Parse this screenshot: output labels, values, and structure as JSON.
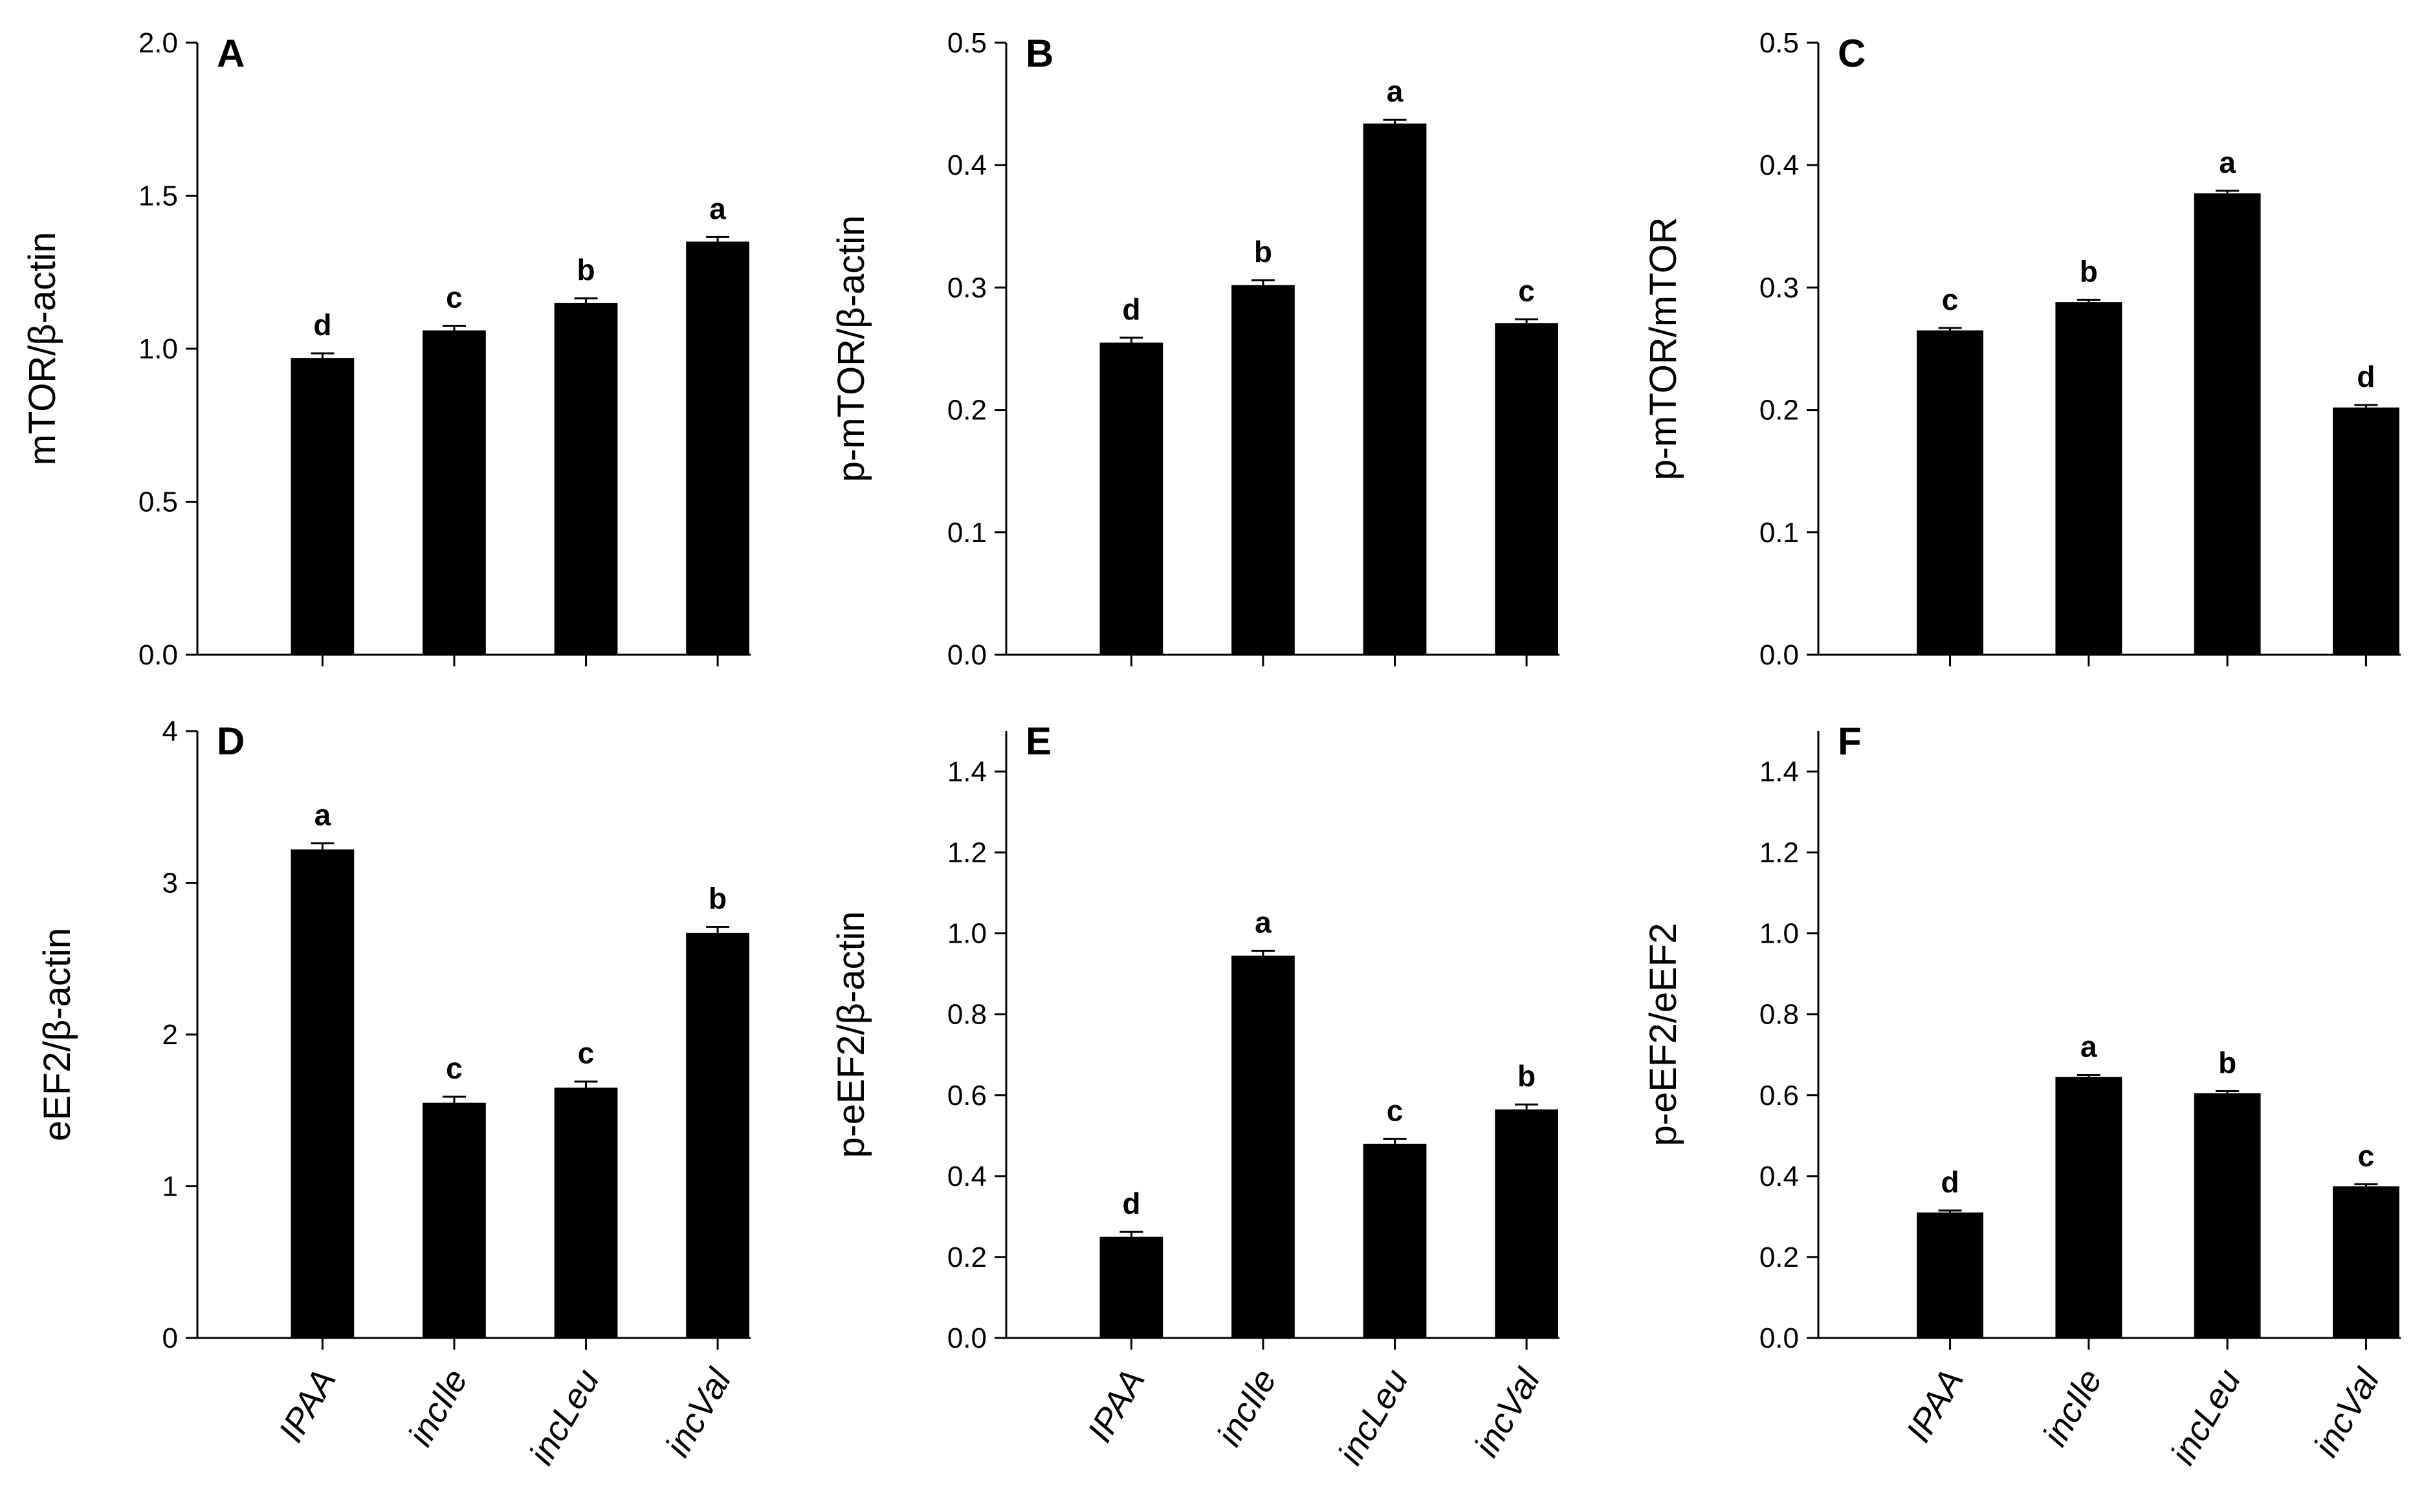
{
  "chart_data": [
    {
      "panel": "A",
      "type": "bar",
      "ylabel": "mTOR/β-actin",
      "categories": [
        "IPAA",
        "incIle",
        "incLeu",
        "incVal"
      ],
      "values": [
        0.97,
        1.06,
        1.15,
        1.35
      ],
      "errors": [
        0.015,
        0.015,
        0.015,
        0.015
      ],
      "letters": [
        "d",
        "c",
        "b",
        "a"
      ],
      "ylim": [
        0,
        2.0
      ],
      "yticks": [
        "0.0",
        "0.5",
        "1.0",
        "1.5",
        "2.0"
      ],
      "yticks_values": [
        0,
        0.5,
        1.0,
        1.5,
        2.0
      ],
      "show_xlabels": false
    },
    {
      "panel": "B",
      "type": "bar",
      "ylabel": "p-mTOR/β-actin",
      "categories": [
        "IPAA",
        "incIle",
        "incLeu",
        "incVal"
      ],
      "values": [
        0.255,
        0.302,
        0.434,
        0.271
      ],
      "errors": [
        0.004,
        0.004,
        0.003,
        0.003
      ],
      "letters": [
        "d",
        "b",
        "a",
        "c"
      ],
      "ylim": [
        0,
        0.5
      ],
      "yticks": [
        "0.0",
        "0.1",
        "0.2",
        "0.3",
        "0.4",
        "0.5"
      ],
      "yticks_values": [
        0,
        0.1,
        0.2,
        0.3,
        0.4,
        0.5
      ],
      "show_xlabels": false
    },
    {
      "panel": "C",
      "type": "bar",
      "ylabel": "p-mTOR/mTOR",
      "categories": [
        "IPAA",
        "incIle",
        "incLeu",
        "incVal"
      ],
      "values": [
        0.265,
        0.288,
        0.377,
        0.202
      ],
      "errors": [
        0.002,
        0.002,
        0.002,
        0.002
      ],
      "letters": [
        "c",
        "b",
        "a",
        "d"
      ],
      "ylim": [
        0,
        0.5
      ],
      "yticks": [
        "0.0",
        "0.1",
        "0.2",
        "0.3",
        "0.4",
        "0.5"
      ],
      "yticks_values": [
        0,
        0.1,
        0.2,
        0.3,
        0.4,
        0.5
      ],
      "show_xlabels": false
    },
    {
      "panel": "D",
      "type": "bar",
      "ylabel": "eEF2/β-actin",
      "categories": [
        "IPAA",
        "incIle",
        "incLeu",
        "incVal"
      ],
      "values": [
        3.22,
        1.55,
        1.65,
        2.67
      ],
      "errors": [
        0.04,
        0.04,
        0.04,
        0.04
      ],
      "letters": [
        "a",
        "c",
        "c",
        "b"
      ],
      "ylim": [
        0,
        4
      ],
      "yticks": [
        "0",
        "1",
        "2",
        "3",
        "4"
      ],
      "yticks_values": [
        0,
        1,
        2,
        3,
        4
      ],
      "show_xlabels": true
    },
    {
      "panel": "E",
      "type": "bar",
      "ylabel": "p-eEF2/β-actin",
      "categories": [
        "IPAA",
        "incIle",
        "incLeu",
        "incVal"
      ],
      "values": [
        0.25,
        0.945,
        0.48,
        0.565
      ],
      "errors": [
        0.012,
        0.012,
        0.012,
        0.012
      ],
      "letters": [
        "d",
        "a",
        "c",
        "b"
      ],
      "ylim": [
        0,
        1.5
      ],
      "yticks": [
        "0.0",
        "0.2",
        "0.4",
        "0.6",
        "0.8",
        "1.0",
        "1.2",
        "1.4"
      ],
      "yticks_values": [
        0,
        0.2,
        0.4,
        0.6,
        0.8,
        1.0,
        1.2,
        1.4
      ],
      "show_xlabels": true
    },
    {
      "panel": "F",
      "type": "bar",
      "ylabel": "p-eEF2/eEF2",
      "categories": [
        "IPAA",
        "incIle",
        "incLeu",
        "incVal"
      ],
      "values": [
        0.31,
        0.645,
        0.605,
        0.375
      ],
      "errors": [
        0.005,
        0.005,
        0.005,
        0.005
      ],
      "letters": [
        "d",
        "a",
        "b",
        "c"
      ],
      "ylim": [
        0,
        1.5
      ],
      "yticks": [
        "0.0",
        "0.2",
        "0.4",
        "0.6",
        "0.8",
        "1.0",
        "1.2",
        "1.4"
      ],
      "yticks_values": [
        0,
        0.2,
        0.4,
        0.6,
        0.8,
        1.0,
        1.2,
        1.4
      ],
      "show_xlabels": true
    }
  ]
}
